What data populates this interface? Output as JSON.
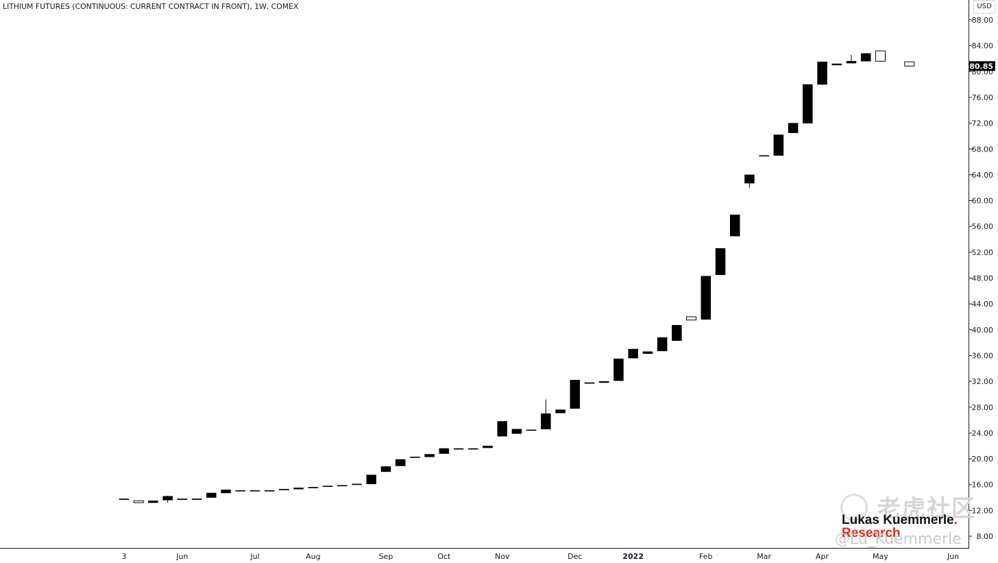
{
  "header": {
    "title": "LITHIUM FUTURES (CONTINUOUS: CURRENT CONTRACT IN FRONT), 1W, COMEX",
    "currency": "USD"
  },
  "watermark": {
    "community_text": "老虎社区",
    "handle": "@Lu_Kuemmerle",
    "brand_line1": "Lukas Kuemmerle",
    "brand_dot": ".",
    "brand_line2": "Research"
  },
  "colors": {
    "candle_body": "#000000",
    "up_candle": "#ffffff",
    "last_price_bg": "#000000",
    "brand_red": "#e3271b"
  },
  "chart_data": {
    "type": "candlestick",
    "interval": "1W",
    "title": "LITHIUM FUTURES (CONTINUOUS: CURRENT CONTRACT IN FRONT), 1W, COMEX",
    "ylabel": "USD",
    "ylim": [
      7.0,
      90.0
    ],
    "y_ticks": [
      "88.00",
      "84.00",
      "80.00",
      "76.00",
      "72.00",
      "68.00",
      "64.00",
      "60.00",
      "56.00",
      "52.00",
      "48.00",
      "44.00",
      "40.00",
      "36.00",
      "32.00",
      "28.00",
      "24.00",
      "20.00",
      "16.00",
      "12.00",
      "8.00"
    ],
    "x_tick_labels": [
      "3",
      "Jun",
      "Jul",
      "Aug",
      "Sep",
      "Oct",
      "Nov",
      "Dec",
      "2022",
      "Feb",
      "Mar",
      "Apr",
      "May",
      "Jun"
    ],
    "x_tick_weeks": [
      0.5,
      4.5,
      9.5,
      13.5,
      18.5,
      22.5,
      26.5,
      31.5,
      35.5,
      40.5,
      44.5,
      48.5,
      52.5,
      57.5
    ],
    "last_price": "80.85",
    "candles": [
      {
        "o": 13.8,
        "h": 13.8,
        "l": 13.8,
        "c": 13.8
      },
      {
        "o": 13.2,
        "h": 13.5,
        "l": 13.2,
        "c": 13.5
      },
      {
        "o": 13.5,
        "h": 13.5,
        "l": 13.2,
        "c": 13.2
      },
      {
        "o": 14.2,
        "h": 14.3,
        "l": 13.2,
        "c": 13.6
      },
      {
        "o": 13.8,
        "h": 13.8,
        "l": 13.8,
        "c": 13.8
      },
      {
        "o": 13.8,
        "h": 13.8,
        "l": 13.8,
        "c": 13.8
      },
      {
        "o": 14.7,
        "h": 14.7,
        "l": 14.0,
        "c": 14.0
      },
      {
        "o": 15.2,
        "h": 15.2,
        "l": 14.7,
        "c": 14.7
      },
      {
        "o": 15.1,
        "h": 15.1,
        "l": 15.1,
        "c": 15.1
      },
      {
        "o": 15.1,
        "h": 15.1,
        "l": 15.1,
        "c": 15.1
      },
      {
        "o": 15.1,
        "h": 15.1,
        "l": 15.1,
        "c": 15.1
      },
      {
        "o": 15.3,
        "h": 15.3,
        "l": 15.3,
        "c": 15.3
      },
      {
        "o": 15.5,
        "h": 15.5,
        "l": 15.3,
        "c": 15.3
      },
      {
        "o": 15.6,
        "h": 15.6,
        "l": 15.6,
        "c": 15.6
      },
      {
        "o": 15.8,
        "h": 15.8,
        "l": 15.8,
        "c": 15.8
      },
      {
        "o": 15.9,
        "h": 15.9,
        "l": 15.9,
        "c": 15.9
      },
      {
        "o": 16.1,
        "h": 16.1,
        "l": 16.0,
        "c": 16.0
      },
      {
        "o": 17.5,
        "h": 17.5,
        "l": 16.1,
        "c": 16.1
      },
      {
        "o": 18.8,
        "h": 18.8,
        "l": 18.0,
        "c": 18.0
      },
      {
        "o": 19.9,
        "h": 19.9,
        "l": 18.9,
        "c": 18.9
      },
      {
        "o": 20.3,
        "h": 20.3,
        "l": 20.3,
        "c": 20.3
      },
      {
        "o": 20.7,
        "h": 20.7,
        "l": 20.3,
        "c": 20.3
      },
      {
        "o": 21.6,
        "h": 21.6,
        "l": 20.8,
        "c": 20.8
      },
      {
        "o": 21.6,
        "h": 21.6,
        "l": 21.6,
        "c": 21.6
      },
      {
        "o": 21.6,
        "h": 21.6,
        "l": 21.6,
        "c": 21.6
      },
      {
        "o": 22.0,
        "h": 22.0,
        "l": 21.7,
        "c": 21.7
      },
      {
        "o": 25.8,
        "h": 25.8,
        "l": 23.5,
        "c": 23.5
      },
      {
        "o": 24.6,
        "h": 24.6,
        "l": 23.9,
        "c": 23.9
      },
      {
        "o": 24.5,
        "h": 24.5,
        "l": 24.5,
        "c": 24.5
      },
      {
        "o": 27.0,
        "h": 29.2,
        "l": 24.6,
        "c": 24.6
      },
      {
        "o": 27.6,
        "h": 27.6,
        "l": 27.1,
        "c": 27.1
      },
      {
        "o": 32.2,
        "h": 32.2,
        "l": 27.8,
        "c": 27.8
      },
      {
        "o": 31.8,
        "h": 31.8,
        "l": 31.8,
        "c": 31.8
      },
      {
        "o": 32.0,
        "h": 32.0,
        "l": 31.8,
        "c": 31.8
      },
      {
        "o": 35.5,
        "h": 35.5,
        "l": 32.1,
        "c": 32.1
      },
      {
        "o": 37.0,
        "h": 37.0,
        "l": 35.6,
        "c": 35.6
      },
      {
        "o": 36.6,
        "h": 36.6,
        "l": 36.3,
        "c": 36.3
      },
      {
        "o": 38.8,
        "h": 38.8,
        "l": 36.7,
        "c": 36.7
      },
      {
        "o": 40.7,
        "h": 40.7,
        "l": 38.3,
        "c": 38.3
      },
      {
        "o": 41.5,
        "h": 42.0,
        "l": 41.5,
        "c": 42.0
      },
      {
        "o": 48.3,
        "h": 48.3,
        "l": 41.6,
        "c": 41.6
      },
      {
        "o": 52.6,
        "h": 52.6,
        "l": 48.5,
        "c": 48.5
      },
      {
        "o": 57.8,
        "h": 57.8,
        "l": 54.5,
        "c": 54.5
      },
      {
        "o": 64.0,
        "h": 64.0,
        "l": 62.0,
        "c": 62.7
      },
      {
        "o": 67.0,
        "h": 67.0,
        "l": 67.0,
        "c": 67.0
      },
      {
        "o": 70.2,
        "h": 70.2,
        "l": 67.0,
        "c": 67.0
      },
      {
        "o": 72.0,
        "h": 72.0,
        "l": 70.5,
        "c": 70.5
      },
      {
        "o": 78.0,
        "h": 78.0,
        "l": 72.0,
        "c": 72.0
      },
      {
        "o": 81.5,
        "h": 81.5,
        "l": 78.0,
        "c": 78.0
      },
      {
        "o": 81.2,
        "h": 81.2,
        "l": 81.0,
        "c": 81.0
      },
      {
        "o": 81.6,
        "h": 82.6,
        "l": 81.3,
        "c": 81.3
      },
      {
        "o": 82.8,
        "h": 82.8,
        "l": 81.6,
        "c": 81.6
      },
      {
        "o": 81.6,
        "h": 83.2,
        "l": 81.6,
        "c": 83.2
      },
      null,
      {
        "o": 80.85,
        "h": 81.5,
        "l": 80.85,
        "c": 81.5
      }
    ]
  }
}
